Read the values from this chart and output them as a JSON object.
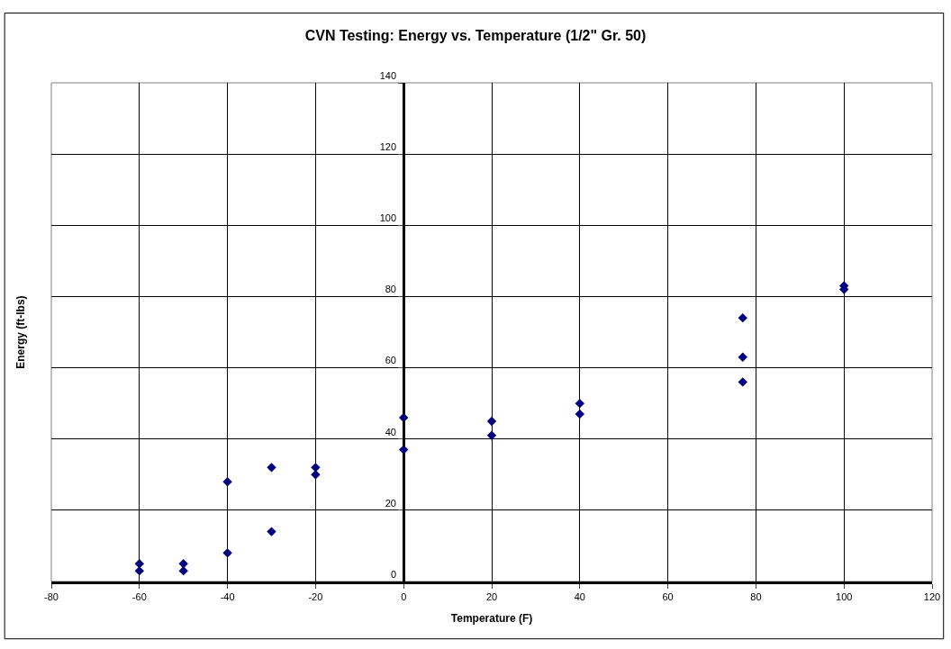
{
  "chart_data": {
    "type": "scatter",
    "title": "CVN Testing: Energy vs. Temperature (1/2\" Gr. 50)",
    "xlabel": "Temperature (F)",
    "ylabel": "Energy (ft-lbs)",
    "x": [
      -60,
      -60,
      -50,
      -50,
      -40,
      -40,
      -30,
      -30,
      -20,
      -20,
      0,
      0,
      20,
      20,
      40,
      40,
      77,
      77,
      77,
      100,
      100
    ],
    "values": [
      5,
      3,
      5,
      3,
      28,
      8,
      32,
      14,
      32,
      30,
      46,
      37,
      45,
      41,
      50,
      47,
      74,
      63,
      56,
      83,
      82
    ],
    "color": "#000080",
    "marker": "diamond",
    "xlim": [
      -80,
      120
    ],
    "xticks": [
      -80,
      -60,
      -40,
      -20,
      0,
      20,
      40,
      60,
      80,
      100,
      120
    ],
    "ylim": [
      0,
      140
    ],
    "yticks": [
      0,
      20,
      40,
      60,
      80,
      100,
      120,
      140
    ],
    "grid": true,
    "legend": false
  }
}
